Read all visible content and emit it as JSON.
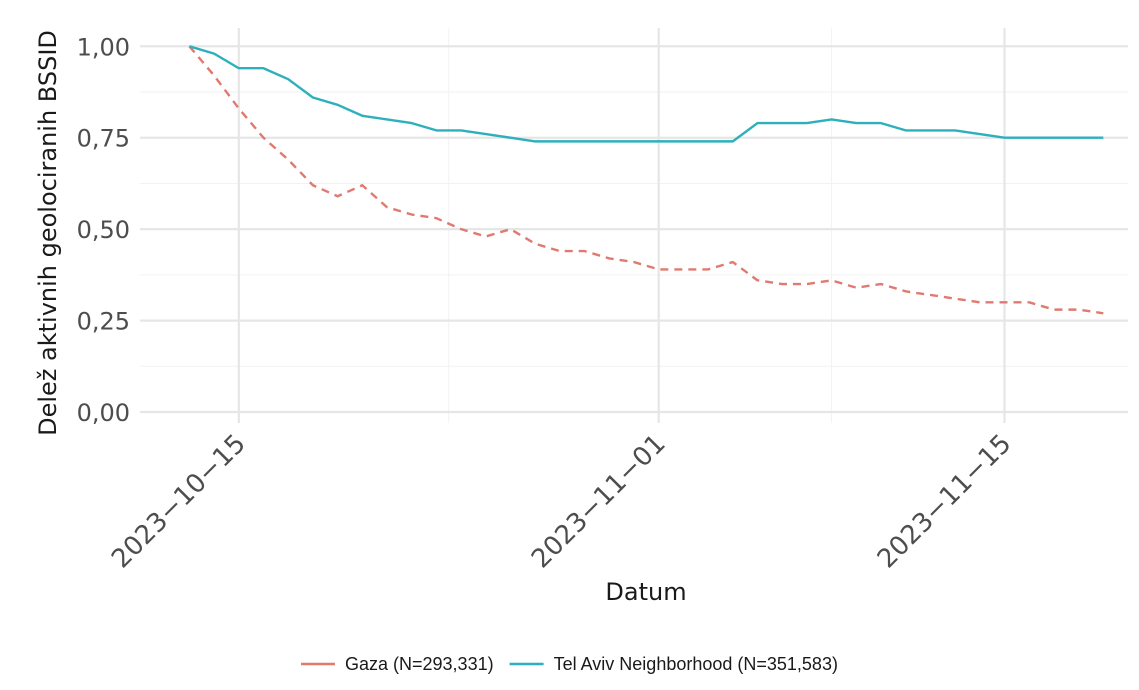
{
  "chart_data": {
    "type": "line",
    "title": "",
    "xlabel": "Datum",
    "ylabel": "Delež aktivnih geolociranih BSSID",
    "x_tick_labels": [
      "2023−10−15",
      "2023−11−01",
      "2023−11−15"
    ],
    "x_tick_dates": [
      "2023-10-15",
      "2023-11-01",
      "2023-11-15"
    ],
    "y_tick_labels": [
      "0,00",
      "0,25",
      "0,50",
      "0,75",
      "1,00"
    ],
    "y_tick_values": [
      0,
      0.25,
      0.5,
      0.75,
      1.0
    ],
    "ylim": [
      -0.03,
      1.05
    ],
    "xlim": [
      "2023-10-11",
      "2023-11-20"
    ],
    "grid": true,
    "legend_position": "bottom",
    "series": [
      {
        "name": "Gaza (N=293,331)",
        "color": "#E07A70",
        "dash": "dashed",
        "points": [
          [
            "2023-10-13",
            1.0
          ],
          [
            "2023-10-14",
            0.92
          ],
          [
            "2023-10-15",
            0.83
          ],
          [
            "2023-10-16",
            0.75
          ],
          [
            "2023-10-17",
            0.69
          ],
          [
            "2023-10-18",
            0.62
          ],
          [
            "2023-10-19",
            0.59
          ],
          [
            "2023-10-20",
            0.62
          ],
          [
            "2023-10-21",
            0.56
          ],
          [
            "2023-10-22",
            0.54
          ],
          [
            "2023-10-23",
            0.53
          ],
          [
            "2023-10-24",
            0.5
          ],
          [
            "2023-10-25",
            0.48
          ],
          [
            "2023-10-26",
            0.5
          ],
          [
            "2023-10-27",
            0.46
          ],
          [
            "2023-10-28",
            0.44
          ],
          [
            "2023-10-29",
            0.44
          ],
          [
            "2023-10-30",
            0.42
          ],
          [
            "2023-10-31",
            0.41
          ],
          [
            "2023-11-01",
            0.39
          ],
          [
            "2023-11-02",
            0.39
          ],
          [
            "2023-11-03",
            0.39
          ],
          [
            "2023-11-04",
            0.41
          ],
          [
            "2023-11-05",
            0.36
          ],
          [
            "2023-11-06",
            0.35
          ],
          [
            "2023-11-07",
            0.35
          ],
          [
            "2023-11-08",
            0.36
          ],
          [
            "2023-11-09",
            0.34
          ],
          [
            "2023-11-10",
            0.35
          ],
          [
            "2023-11-11",
            0.33
          ],
          [
            "2023-11-12",
            0.32
          ],
          [
            "2023-11-13",
            0.31
          ],
          [
            "2023-11-14",
            0.3
          ],
          [
            "2023-11-15",
            0.3
          ],
          [
            "2023-11-16",
            0.3
          ],
          [
            "2023-11-17",
            0.28
          ],
          [
            "2023-11-18",
            0.28
          ],
          [
            "2023-11-19",
            0.27
          ]
        ]
      },
      {
        "name": "Tel Aviv Neighborhood (N=351,583)",
        "color": "#2EB0BC",
        "dash": "solid",
        "points": [
          [
            "2023-10-13",
            1.0
          ],
          [
            "2023-10-14",
            0.98
          ],
          [
            "2023-10-15",
            0.94
          ],
          [
            "2023-10-16",
            0.94
          ],
          [
            "2023-10-17",
            0.91
          ],
          [
            "2023-10-18",
            0.86
          ],
          [
            "2023-10-19",
            0.84
          ],
          [
            "2023-10-20",
            0.81
          ],
          [
            "2023-10-21",
            0.8
          ],
          [
            "2023-10-22",
            0.79
          ],
          [
            "2023-10-23",
            0.77
          ],
          [
            "2023-10-24",
            0.77
          ],
          [
            "2023-10-25",
            0.76
          ],
          [
            "2023-10-26",
            0.75
          ],
          [
            "2023-10-27",
            0.74
          ],
          [
            "2023-10-28",
            0.74
          ],
          [
            "2023-10-29",
            0.74
          ],
          [
            "2023-10-30",
            0.74
          ],
          [
            "2023-10-31",
            0.74
          ],
          [
            "2023-11-01",
            0.74
          ],
          [
            "2023-11-02",
            0.74
          ],
          [
            "2023-11-03",
            0.74
          ],
          [
            "2023-11-04",
            0.74
          ],
          [
            "2023-11-05",
            0.79
          ],
          [
            "2023-11-06",
            0.79
          ],
          [
            "2023-11-07",
            0.79
          ],
          [
            "2023-11-08",
            0.8
          ],
          [
            "2023-11-09",
            0.79
          ],
          [
            "2023-11-10",
            0.79
          ],
          [
            "2023-11-11",
            0.77
          ],
          [
            "2023-11-12",
            0.77
          ],
          [
            "2023-11-13",
            0.77
          ],
          [
            "2023-11-14",
            0.76
          ],
          [
            "2023-11-15",
            0.75
          ],
          [
            "2023-11-16",
            0.75
          ],
          [
            "2023-11-17",
            0.75
          ],
          [
            "2023-11-18",
            0.75
          ],
          [
            "2023-11-19",
            0.75
          ]
        ]
      }
    ]
  }
}
